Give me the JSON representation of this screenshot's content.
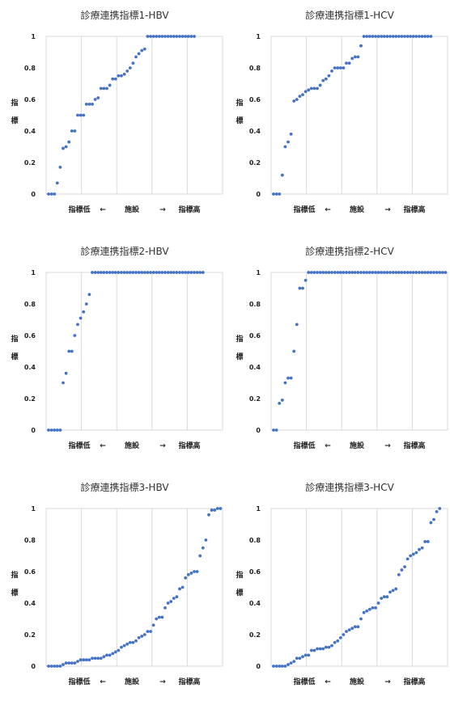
{
  "chart_data": [
    {
      "type": "scatter",
      "title": "診療連携指標1-HBV",
      "ylabel": "指標",
      "xlabel": {
        "low": "指標低",
        "left_arrow": "←",
        "mid": "施設",
        "right_arrow": "→",
        "high": "指標高"
      },
      "ylim": [
        0,
        1
      ],
      "yticks": [
        "0",
        "0.2",
        "0.4",
        "0.6",
        "0.8",
        "1"
      ],
      "x_grid_count": 5,
      "grid": true,
      "color": "#4472C4",
      "values": [
        0,
        0,
        0,
        0.07,
        0.17,
        0.29,
        0.3,
        0.33,
        0.4,
        0.4,
        0.5,
        0.5,
        0.5,
        0.57,
        0.57,
        0.57,
        0.6,
        0.61,
        0.67,
        0.67,
        0.67,
        0.69,
        0.73,
        0.73,
        0.75,
        0.75,
        0.76,
        0.78,
        0.8,
        0.83,
        0.87,
        0.89,
        0.91,
        0.92,
        1,
        1,
        1,
        1,
        1,
        1,
        1,
        1,
        1,
        1,
        1,
        1,
        1,
        1,
        1,
        1,
        1
      ]
    },
    {
      "type": "scatter",
      "title": "診療連携指標1-HCV",
      "ylabel": "指標",
      "xlabel": {
        "low": "指標低",
        "left_arrow": "←",
        "mid": "施設",
        "right_arrow": "→",
        "high": "指標高"
      },
      "ylim": [
        0,
        1
      ],
      "yticks": [
        "0",
        "0.2",
        "0.4",
        "0.6",
        "0.8",
        "1"
      ],
      "x_grid_count": 5,
      "grid": true,
      "color": "#4472C4",
      "values": [
        0,
        0,
        0,
        0.12,
        0.3,
        0.33,
        0.38,
        0.59,
        0.6,
        0.62,
        0.63,
        0.65,
        0.66,
        0.67,
        0.67,
        0.67,
        0.69,
        0.72,
        0.73,
        0.75,
        0.78,
        0.8,
        0.8,
        0.8,
        0.8,
        0.83,
        0.83,
        0.86,
        0.87,
        0.87,
        0.94,
        1,
        1,
        1,
        1,
        1,
        1,
        1,
        1,
        1,
        1,
        1,
        1,
        1,
        1,
        1,
        1,
        1,
        1,
        1,
        1,
        1,
        1,
        1,
        1
      ]
    },
    {
      "type": "scatter",
      "title": "診療連携指標2-HBV",
      "ylabel": "指標",
      "xlabel": {
        "low": "指標低",
        "left_arrow": "←",
        "mid": "施設",
        "right_arrow": "→",
        "high": "指標高"
      },
      "ylim": [
        0,
        1
      ],
      "yticks": [
        "0",
        "0.2",
        "0.4",
        "0.6",
        "0.8",
        "1"
      ],
      "x_grid_count": 5,
      "grid": true,
      "color": "#4472C4",
      "values": [
        0,
        0,
        0,
        0,
        0,
        0.3,
        0.36,
        0.5,
        0.5,
        0.6,
        0.67,
        0.71,
        0.75,
        0.8,
        0.86,
        1,
        1,
        1,
        1,
        1,
        1,
        1,
        1,
        1,
        1,
        1,
        1,
        1,
        1,
        1,
        1,
        1,
        1,
        1,
        1,
        1,
        1,
        1,
        1,
        1,
        1,
        1,
        1,
        1,
        1,
        1,
        1,
        1,
        1,
        1,
        1,
        1,
        1,
        1
      ]
    },
    {
      "type": "scatter",
      "title": "診療連携指標2-HCV",
      "ylabel": "指標",
      "xlabel": {
        "low": "指標低",
        "left_arrow": "←",
        "mid": "施設",
        "right_arrow": "→",
        "high": "指標高"
      },
      "ylim": [
        0,
        1
      ],
      "yticks": [
        "0",
        "0.2",
        "0.4",
        "0.6",
        "0.8",
        "1"
      ],
      "x_grid_count": 5,
      "grid": true,
      "color": "#4472C4",
      "values": [
        0,
        0,
        0.17,
        0.19,
        0.3,
        0.33,
        0.33,
        0.5,
        0.67,
        0.9,
        0.9,
        0.95,
        1,
        1,
        1,
        1,
        1,
        1,
        1,
        1,
        1,
        1,
        1,
        1,
        1,
        1,
        1,
        1,
        1,
        1,
        1,
        1,
        1,
        1,
        1,
        1,
        1,
        1,
        1,
        1,
        1,
        1,
        1,
        1,
        1,
        1,
        1,
        1,
        1,
        1,
        1,
        1,
        1,
        1,
        1,
        1,
        1,
        1,
        1,
        1
      ]
    },
    {
      "type": "scatter",
      "title": "診療連携指標3-HBV",
      "ylabel": "指標",
      "xlabel": {
        "low": "指標低",
        "left_arrow": "←",
        "mid": "施設",
        "right_arrow": "→",
        "high": "指標高"
      },
      "ylim": [
        0,
        1
      ],
      "yticks": [
        "0",
        "0.2",
        "0.4",
        "0.6",
        "0.8",
        "1"
      ],
      "x_grid_count": 5,
      "grid": true,
      "color": "#4472C4",
      "values": [
        0,
        0,
        0,
        0,
        0,
        0.01,
        0.02,
        0.02,
        0.02,
        0.02,
        0.03,
        0.04,
        0.04,
        0.04,
        0.04,
        0.05,
        0.05,
        0.05,
        0.05,
        0.06,
        0.07,
        0.07,
        0.08,
        0.09,
        0.1,
        0.12,
        0.13,
        0.14,
        0.15,
        0.15,
        0.16,
        0.18,
        0.19,
        0.2,
        0.22,
        0.22,
        0.26,
        0.3,
        0.31,
        0.31,
        0.37,
        0.4,
        0.41,
        0.43,
        0.44,
        0.49,
        0.5,
        0.56,
        0.58,
        0.59,
        0.6,
        0.6,
        0.7,
        0.75,
        0.8,
        0.96,
        0.99,
        0.99,
        1,
        1
      ]
    },
    {
      "type": "scatter",
      "title": "診療連携指標3-HCV",
      "ylabel": "指標",
      "xlabel": {
        "low": "指標低",
        "left_arrow": "←",
        "mid": "施設",
        "right_arrow": "→",
        "high": "指標高"
      },
      "ylim": [
        0,
        1
      ],
      "yticks": [
        "0",
        "0.2",
        "0.4",
        "0.6",
        "0.8",
        "1"
      ],
      "x_grid_count": 5,
      "grid": true,
      "color": "#4472C4",
      "values": [
        0,
        0,
        0,
        0,
        0,
        0.01,
        0.02,
        0.03,
        0.05,
        0.05,
        0.06,
        0.07,
        0.07,
        0.1,
        0.1,
        0.11,
        0.11,
        0.11,
        0.12,
        0.12,
        0.13,
        0.15,
        0.16,
        0.18,
        0.2,
        0.22,
        0.23,
        0.24,
        0.25,
        0.25,
        0.3,
        0.34,
        0.35,
        0.36,
        0.37,
        0.37,
        0.4,
        0.43,
        0.44,
        0.44,
        0.47,
        0.48,
        0.49,
        0.58,
        0.61,
        0.63,
        0.68,
        0.7,
        0.71,
        0.72,
        0.74,
        0.75,
        0.79,
        0.79,
        0.91,
        0.93,
        0.98,
        1
      ]
    }
  ]
}
